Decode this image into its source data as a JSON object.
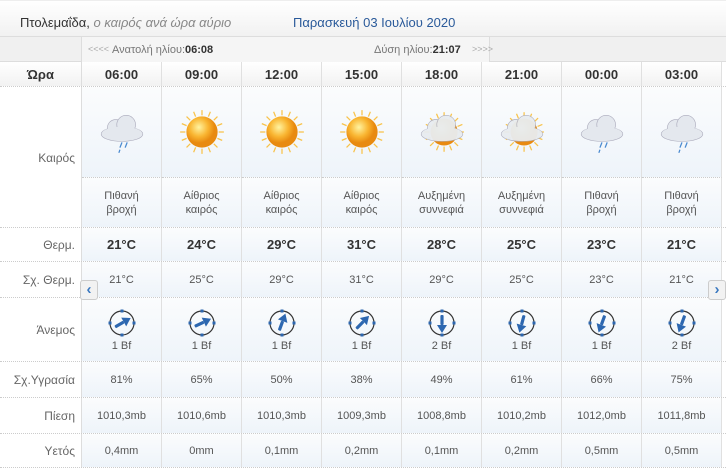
{
  "header": {
    "city": "Πτολεμαΐδα,",
    "subtitle": "ο καιρός ανά ώρα αύριο",
    "date": "Παρασκευή 03 Ιουλίου 2020"
  },
  "sun": {
    "prev": "<<<<",
    "sunrise_label": "Ανατολή ηλίου:",
    "sunrise": "06:08",
    "sunset_label": "Δύση ηλίου:",
    "sunset": "21:07",
    "next": ">>>>"
  },
  "labels": {
    "hour": "Ώρα",
    "weather": "Καιρός",
    "temp": "Θερμ.",
    "feels": "Σχ. Θερμ.",
    "wind": "Άνεμος",
    "humidity": "Σχ.Υγρασία",
    "pressure": "Πίεση",
    "rain": "Υετός"
  },
  "nav": {
    "prev": "‹",
    "next": "›"
  },
  "hours": [
    {
      "time": "06:00",
      "icon": "rain-cloud-icon",
      "desc": "Πιθανή βροχή",
      "temp": "21°C",
      "feels": "21°C",
      "wind_dir_deg": 60,
      "wind": "1 Bf",
      "humidity": "81%",
      "pressure": "1010,3mb",
      "rain": "0,4mm"
    },
    {
      "time": "09:00",
      "icon": "sun-icon",
      "desc": "Αίθριος καιρός",
      "temp": "24°C",
      "feels": "25°C",
      "wind_dir_deg": 65,
      "wind": "1 Bf",
      "humidity": "65%",
      "pressure": "1010,6mb",
      "rain": "0mm"
    },
    {
      "time": "12:00",
      "icon": "sun-icon",
      "desc": "Αίθριος καιρός",
      "temp": "29°C",
      "feels": "29°C",
      "wind_dir_deg": 20,
      "wind": "1 Bf",
      "humidity": "50%",
      "pressure": "1010,3mb",
      "rain": "0,1mm"
    },
    {
      "time": "15:00",
      "icon": "sun-icon",
      "desc": "Αίθριος καιρός",
      "temp": "31°C",
      "feels": "31°C",
      "wind_dir_deg": 45,
      "wind": "1 Bf",
      "humidity": "38%",
      "pressure": "1009,3mb",
      "rain": "0,2mm"
    },
    {
      "time": "18:00",
      "icon": "sun-behind-cloud-icon",
      "desc": "Αυξημένη συννεφιά",
      "temp": "28°C",
      "feels": "29°C",
      "wind_dir_deg": 180,
      "wind": "2 Bf",
      "humidity": "49%",
      "pressure": "1008,8mb",
      "rain": "0,1mm"
    },
    {
      "time": "21:00",
      "icon": "sun-behind-cloud-icon",
      "desc": "Αυξημένη συννεφιά",
      "temp": "25°C",
      "feels": "25°C",
      "wind_dir_deg": 195,
      "wind": "1 Bf",
      "humidity": "61%",
      "pressure": "1010,2mb",
      "rain": "0,2mm"
    },
    {
      "time": "00:00",
      "icon": "rain-cloud-icon",
      "desc": "Πιθανή βροχή",
      "temp": "23°C",
      "feels": "23°C",
      "wind_dir_deg": 200,
      "wind": "1 Bf",
      "humidity": "66%",
      "pressure": "1012,0mb",
      "rain": "0,5mm"
    },
    {
      "time": "03:00",
      "icon": "rain-cloud-icon",
      "desc": "Πιθανή βροχή",
      "temp": "21°C",
      "feels": "21°C",
      "wind_dir_deg": 200,
      "wind": "2 Bf",
      "humidity": "75%",
      "pressure": "1011,8mb",
      "rain": "0,5mm"
    }
  ]
}
